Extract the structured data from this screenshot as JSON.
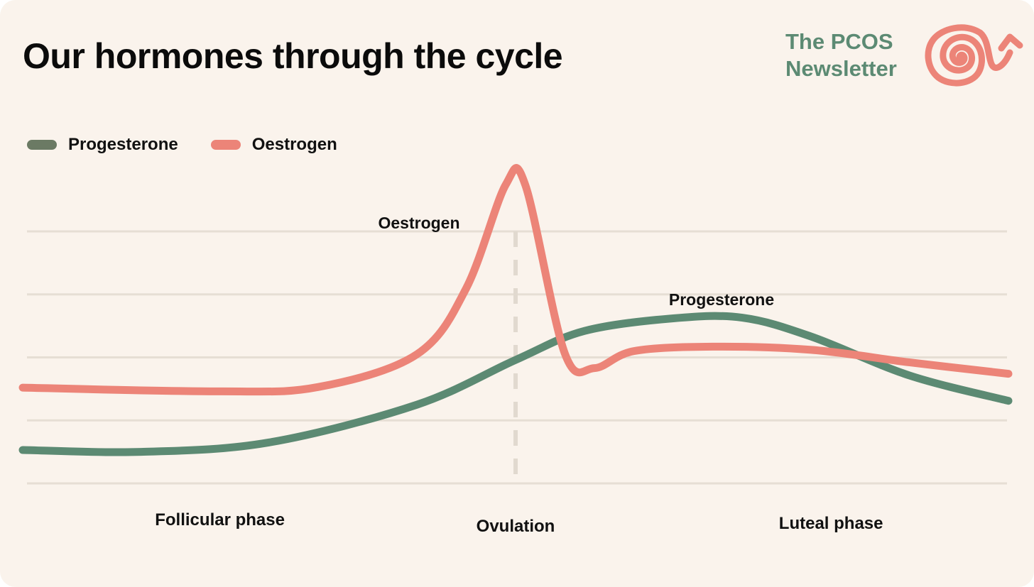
{
  "header": {
    "title": "Our hormones through the cycle",
    "brand_line1": "The PCOS",
    "brand_line2": "Newsletter",
    "logo_icon": "spiral-arrow-icon"
  },
  "colors": {
    "background": "#faf3ec",
    "progesterone": "#5c8a73",
    "oestrogen": "#ec8478",
    "brand_text": "#5c8a73",
    "legend_progesterone": "#6b7a64",
    "grid": "#e6ded4"
  },
  "chart_data": {
    "type": "line",
    "title": "Our hormones through the cycle",
    "xlabel": "",
    "ylabel": "",
    "x_range": [
      0,
      100
    ],
    "ylim": [
      0,
      4
    ],
    "grid": true,
    "legend": {
      "placement": "top-left"
    },
    "series": [
      {
        "name": "Progesterone",
        "color": "#5c8a73",
        "points": [
          [
            0,
            0.53
          ],
          [
            12,
            0.5
          ],
          [
            25,
            0.65
          ],
          [
            40,
            1.25
          ],
          [
            50,
            1.96
          ],
          [
            57,
            2.42
          ],
          [
            66,
            2.62
          ],
          [
            73,
            2.63
          ],
          [
            80,
            2.33
          ],
          [
            90,
            1.71
          ],
          [
            100,
            1.31
          ]
        ]
      },
      {
        "name": "Oestrogen",
        "color": "#ec8478",
        "points": [
          [
            0,
            1.52
          ],
          [
            20,
            1.46
          ],
          [
            30,
            1.53
          ],
          [
            40,
            2.05
          ],
          [
            45,
            3.1
          ],
          [
            49,
            4.74
          ],
          [
            51,
            4.73
          ],
          [
            55,
            2.06
          ],
          [
            58,
            1.83
          ],
          [
            62,
            2.1
          ],
          [
            70,
            2.17
          ],
          [
            80,
            2.12
          ],
          [
            90,
            1.92
          ],
          [
            100,
            1.74
          ]
        ]
      }
    ],
    "annotations": [
      {
        "text": "Oestrogen",
        "series": "Oestrogen",
        "at": "peak"
      },
      {
        "text": "Progesterone",
        "series": "Progesterone",
        "at": "peak"
      }
    ],
    "marker": {
      "label": "Ovulation",
      "x": 50
    },
    "phases": [
      {
        "label": "Follicular phase",
        "x": 20
      },
      {
        "label": "Ovulation",
        "x": 50
      },
      {
        "label": "Luteal phase",
        "x": 82
      }
    ]
  }
}
